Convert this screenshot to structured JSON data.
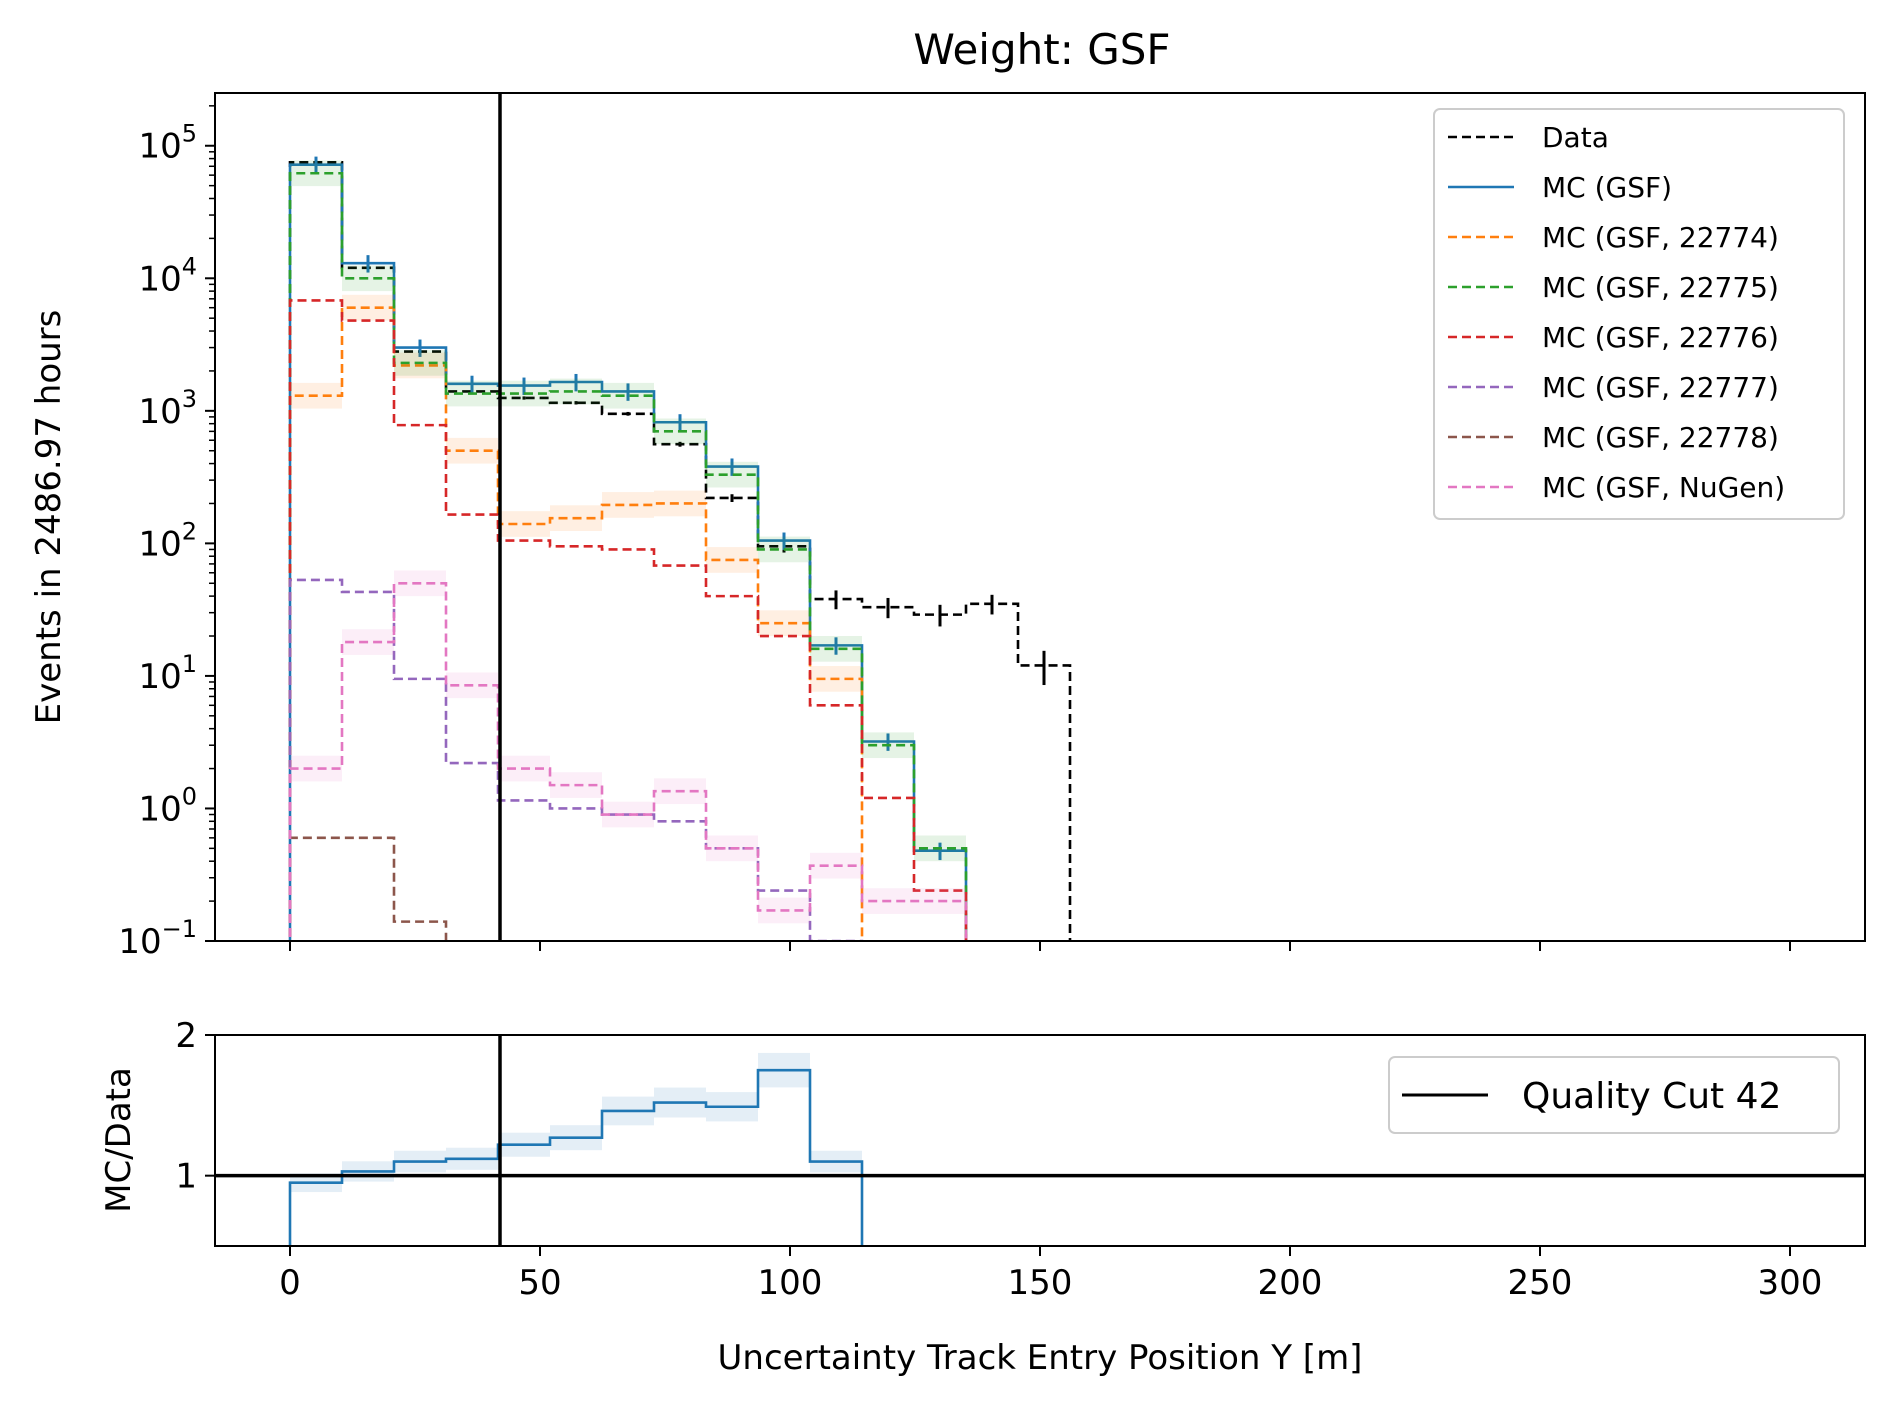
{
  "chart_data": [
    {
      "type": "line",
      "title": "Weight: GSF",
      "ylabel": "Events in 2486.97 hours",
      "xlabel": "",
      "yscale": "log",
      "ylim": [
        0.1,
        250000
      ],
      "xlim": [
        -15,
        315
      ],
      "y_tick_labels": [
        {
          "value": 0.1,
          "base": "10",
          "exp": "−1"
        },
        {
          "value": 1,
          "base": "10",
          "exp": "0"
        },
        {
          "value": 10,
          "base": "10",
          "exp": "1"
        },
        {
          "value": 100,
          "base": "10",
          "exp": "2"
        },
        {
          "value": 1000,
          "base": "10",
          "exp": "3"
        },
        {
          "value": 10000,
          "base": "10",
          "exp": "4"
        },
        {
          "value": 100000,
          "base": "10",
          "exp": "5"
        }
      ],
      "bin_edges": [
        0,
        10.4,
        20.8,
        31.2,
        41.6,
        52,
        62.4,
        72.8,
        83.2,
        93.6,
        104,
        114.4,
        124.8,
        135.2,
        145.6,
        156,
        166.4
      ],
      "cut_line_x": 42,
      "legend_position": "upper right",
      "series": [
        {
          "name": "Data",
          "color": "#000000",
          "dashed": true,
          "values": [
            75000,
            12000,
            2800,
            1400,
            1250,
            1150,
            950,
            560,
            220,
            95,
            38,
            33,
            29,
            35,
            12,
            0
          ]
        },
        {
          "name": "MC (GSF)",
          "color": "#1f77b4",
          "dashed": false,
          "values": [
            72000,
            13000,
            3000,
            1600,
            1550,
            1650,
            1400,
            820,
            380,
            105,
            17,
            3.2,
            0.48,
            0,
            0,
            0
          ]
        },
        {
          "name": "MC (GSF, 22774)",
          "color": "#ff7f0e",
          "dashed": true,
          "values": [
            1300,
            6000,
            2200,
            500,
            140,
            155,
            195,
            200,
            75,
            25,
            9.5,
            0,
            0,
            0,
            0,
            0
          ],
          "band": true
        },
        {
          "name": "MC (GSF, 22775)",
          "color": "#2ca02c",
          "dashed": true,
          "values": [
            62000,
            10000,
            2300,
            1350,
            1350,
            1400,
            1300,
            700,
            330,
            90,
            16,
            3.0,
            0.5,
            0,
            0,
            0
          ],
          "band": true
        },
        {
          "name": "MC (GSF, 22776)",
          "color": "#d62728",
          "dashed": true,
          "values": [
            6800,
            4800,
            780,
            165,
            105,
            95,
            90,
            68,
            40,
            20,
            6.0,
            1.2,
            0.24,
            0,
            0,
            0
          ]
        },
        {
          "name": "MC (GSF, 22777)",
          "color": "#9467bd",
          "dashed": true,
          "values": [
            53,
            43,
            9.5,
            2.2,
            1.15,
            1.0,
            0.9,
            0.8,
            0.5,
            0.24,
            0.1,
            0,
            0,
            0,
            0,
            0
          ]
        },
        {
          "name": "MC (GSF, 22778)",
          "color": "#8c564b",
          "dashed": true,
          "values": [
            0.6,
            0.6,
            0.14,
            0,
            0,
            0,
            0,
            0,
            0,
            0,
            0,
            0,
            0,
            0,
            0,
            0
          ]
        },
        {
          "name": "MC (GSF, NuGen)",
          "color": "#e377c2",
          "dashed": true,
          "values": [
            2.0,
            18,
            50,
            8.5,
            2.0,
            1.5,
            0.9,
            1.35,
            0.5,
            0.17,
            0.37,
            0.2,
            0.2,
            0,
            0,
            0
          ],
          "band": true
        }
      ]
    },
    {
      "type": "line",
      "ylabel": "MC/Data",
      "xlabel": "Uncertainty Track Entry Position Y [m]",
      "ylim": [
        0.5,
        2
      ],
      "xlim": [
        -15,
        315
      ],
      "x_tick_labels": [
        "0",
        "50",
        "100",
        "150",
        "200",
        "250",
        "300"
      ],
      "y_tick_labels": [
        "1",
        "2"
      ],
      "reference_line": 1,
      "cut_line_x": 42,
      "legend": {
        "label": "Quality Cut 42",
        "position": "upper right"
      },
      "series": [
        {
          "name": "",
          "color": "#1f77b4",
          "values": [
            0.95,
            1.03,
            1.1,
            1.12,
            1.22,
            1.27,
            1.46,
            1.52,
            1.49,
            1.75,
            1.1,
            0.45
          ]
        }
      ]
    }
  ]
}
